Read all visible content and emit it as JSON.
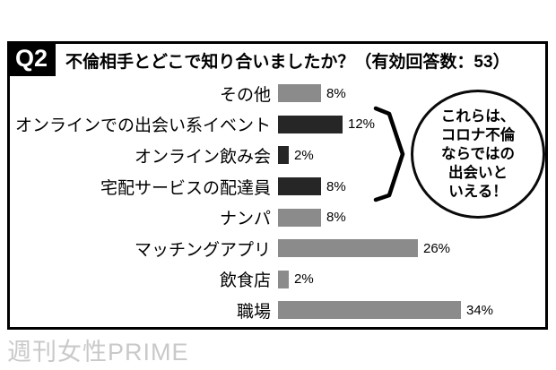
{
  "header": {
    "q_label": "Q2",
    "title": "不倫相手とどこで知り合いましたか？（有効回答数：53）"
  },
  "chart_data": {
    "type": "bar",
    "orientation": "horizontal",
    "title": "不倫相手とどこで知り合いましたか？",
    "valid_response_count": 53,
    "categories": [
      "その他",
      "オンラインでの出会い系イベント",
      "オンライン飲み会",
      "宅配サービスの配達員",
      "ナンパ",
      "マッチングアプリ",
      "飲食店",
      "職場"
    ],
    "values": [
      8,
      12,
      2,
      8,
      8,
      26,
      2,
      34
    ],
    "value_labels": [
      "8%",
      "12%",
      "2%",
      "8%",
      "8%",
      "26%",
      "2%",
      "34%"
    ],
    "unit": "%",
    "xlim": [
      0,
      40
    ],
    "grid": false,
    "legend": false,
    "highlighted": [
      false,
      true,
      true,
      true,
      false,
      false,
      false,
      false
    ],
    "bar_color_default": "#8b8b8b",
    "bar_color_highlight": "#262626"
  },
  "annotation": {
    "bubble_lines": [
      "これらは、",
      "コロナ不倫",
      "ならではの",
      "出会いと",
      "いえる！"
    ],
    "applies_to": [
      "オンラインでの出会い系イベント",
      "オンライン飲み会",
      "宅配サービスの配達員"
    ]
  },
  "watermark": "週刊女性PRIME"
}
